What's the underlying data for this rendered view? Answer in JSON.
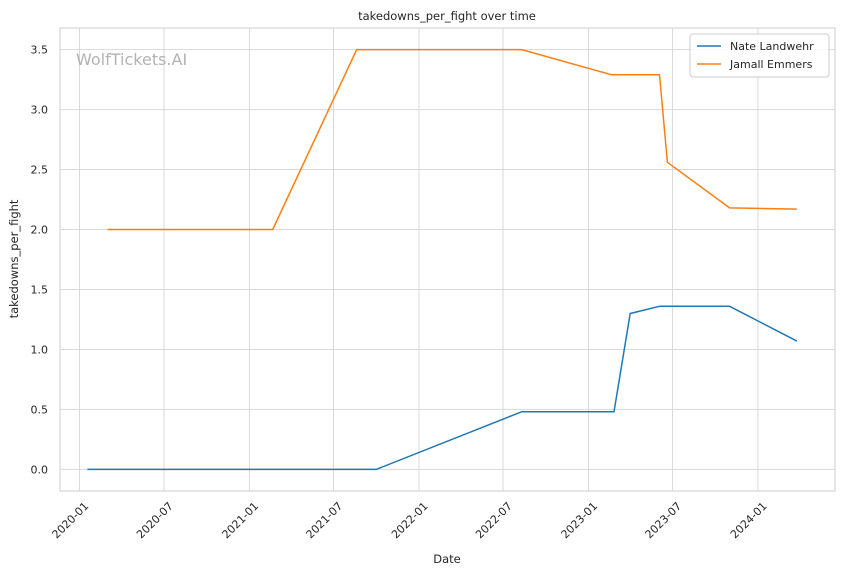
{
  "chart_data": {
    "type": "line",
    "title": "takedowns_per_fight over time",
    "xlabel": "Date",
    "ylabel": "takedowns_per_fight",
    "watermark": "WolfTickets.AI",
    "x_ticks": [
      "2020-01",
      "2020-07",
      "2021-01",
      "2021-07",
      "2022-01",
      "2022-07",
      "2023-01",
      "2023-07",
      "2024-01"
    ],
    "y_ticks": [
      "0.0",
      "0.5",
      "1.0",
      "1.5",
      "2.0",
      "2.5",
      "3.0",
      "3.5"
    ],
    "xlim": [
      "2019-11-20",
      "2024-06-15"
    ],
    "ylim": [
      -0.18,
      3.68
    ],
    "grid": true,
    "legend_position": "top-right",
    "series": [
      {
        "name": "Nate Landwehr",
        "color": "#1f77b4",
        "points": [
          [
            "2020-01-18",
            0.0
          ],
          [
            "2021-10-01",
            0.0
          ],
          [
            "2022-08-10",
            0.48
          ],
          [
            "2023-02-25",
            0.48
          ],
          [
            "2023-04-01",
            1.3
          ],
          [
            "2023-06-03",
            1.36
          ],
          [
            "2023-11-01",
            1.36
          ],
          [
            "2024-03-25",
            1.07
          ]
        ]
      },
      {
        "name": "Jamall Emmers",
        "color": "#ff7f0e",
        "points": [
          [
            "2020-03-01",
            2.0
          ],
          [
            "2021-02-20",
            2.0
          ],
          [
            "2021-08-20",
            3.5
          ],
          [
            "2022-08-10",
            3.5
          ],
          [
            "2023-02-20",
            3.29
          ],
          [
            "2023-06-03",
            3.29
          ],
          [
            "2023-06-20",
            2.56
          ],
          [
            "2023-11-01",
            2.18
          ],
          [
            "2024-03-25",
            2.17
          ]
        ]
      }
    ]
  }
}
